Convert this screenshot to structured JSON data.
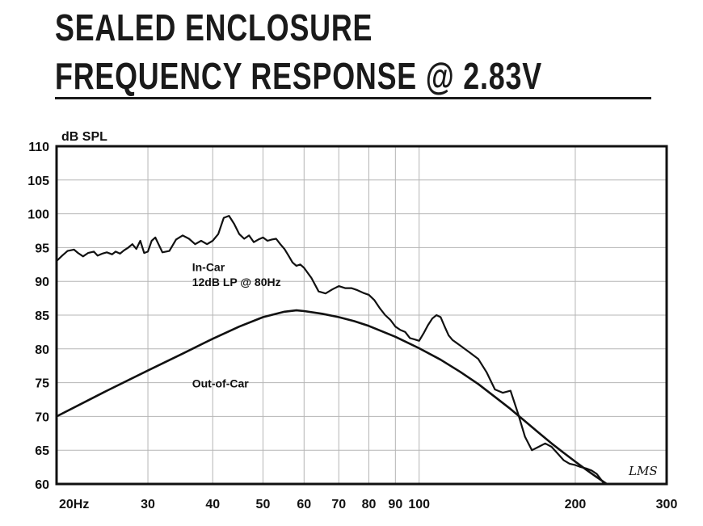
{
  "header": {
    "title_line1": "SEALED ENCLOSURE",
    "title_line2": "FREQUENCY RESPONSE @ 2.83V"
  },
  "chart_data": {
    "type": "line",
    "ylabel": "dB SPL",
    "x_scale": "log",
    "xlim": [
      20,
      300
    ],
    "ylim": [
      60,
      110
    ],
    "x_ticks": [
      {
        "value": 20,
        "label": "20Hz"
      },
      {
        "value": 30,
        "label": "30"
      },
      {
        "value": 40,
        "label": "40"
      },
      {
        "value": 50,
        "label": "50"
      },
      {
        "value": 60,
        "label": "60"
      },
      {
        "value": 70,
        "label": "70"
      },
      {
        "value": 80,
        "label": "80"
      },
      {
        "value": 90,
        "label": "90"
      },
      {
        "value": 100,
        "label": "100"
      },
      {
        "value": 200,
        "label": "200"
      },
      {
        "value": 300,
        "label": "300"
      }
    ],
    "y_ticks": [
      60,
      65,
      70,
      75,
      80,
      85,
      90,
      95,
      100,
      105,
      110
    ],
    "grid": true,
    "series": [
      {
        "name": "In-Car",
        "x": [
          20,
          20.5,
          21,
          21.6,
          22,
          22.5,
          23,
          23.6,
          24,
          24.5,
          25,
          25.6,
          26,
          26.5,
          27,
          27.5,
          28,
          28.5,
          29,
          29.5,
          30,
          30.5,
          31,
          32,
          33,
          34,
          35,
          36,
          37,
          38,
          39,
          40,
          41,
          42,
          43,
          44,
          45,
          46,
          47,
          48,
          49,
          50,
          51,
          52,
          53,
          54,
          55,
          56,
          57,
          58,
          59,
          60,
          62,
          64,
          66,
          68,
          70,
          72,
          74,
          76,
          78,
          80,
          82,
          84,
          86,
          88,
          90,
          92,
          94,
          96,
          98,
          100,
          102,
          104,
          106,
          108,
          110,
          112,
          114,
          116,
          118,
          120,
          125,
          130,
          135,
          140,
          145,
          150,
          155,
          160,
          165,
          170,
          175,
          180,
          185,
          190,
          195,
          200,
          205,
          210,
          215,
          220,
          225,
          230
        ],
        "y": [
          93,
          93.8,
          94.5,
          94.7,
          94.2,
          93.7,
          94.2,
          94.4,
          93.8,
          94.1,
          94.3,
          94.0,
          94.4,
          94.1,
          94.6,
          95.0,
          95.5,
          94.8,
          96.0,
          94.2,
          94.4,
          96.0,
          96.5,
          94.3,
          94.5,
          96.2,
          96.8,
          96.3,
          95.5,
          96.0,
          95.5,
          96.0,
          97.0,
          99.4,
          99.7,
          98.5,
          97.0,
          96.3,
          96.8,
          95.8,
          96.2,
          96.5,
          96.0,
          96.2,
          96.3,
          95.5,
          94.8,
          93.8,
          92.8,
          92.3,
          92.5,
          92.0,
          90.5,
          88.5,
          88.2,
          88.8,
          89.3,
          89.0,
          89.0,
          88.7,
          88.3,
          88.0,
          87.2,
          86.0,
          85.0,
          84.3,
          83.3,
          82.8,
          82.5,
          81.6,
          81.4,
          81.2,
          82.3,
          83.5,
          84.5,
          85.0,
          84.7,
          83.3,
          82.0,
          81.3,
          80.9,
          80.5,
          79.5,
          78.5,
          76.5,
          74.0,
          73.5,
          73.8,
          70.5,
          67.0,
          65.0,
          65.5,
          66.0,
          65.5,
          64.5,
          63.5,
          63.0,
          62.8,
          62.5,
          62.3,
          62.0,
          61.5,
          60.5,
          59.5
        ]
      },
      {
        "name": "Out-of-Car",
        "x": [
          20,
          25,
          30,
          35,
          40,
          45,
          50,
          55,
          58,
          60,
          65,
          70,
          75,
          80,
          90,
          100,
          110,
          120,
          130,
          140,
          150,
          160,
          170,
          180,
          190,
          200,
          210,
          220,
          230,
          240
        ],
        "y": [
          70,
          73.8,
          76.8,
          79.3,
          81.5,
          83.3,
          84.7,
          85.5,
          85.7,
          85.6,
          85.2,
          84.7,
          84.1,
          83.4,
          81.8,
          80.1,
          78.4,
          76.6,
          74.8,
          72.9,
          71.1,
          69.3,
          67.6,
          66.0,
          64.6,
          63.3,
          62.1,
          61.0,
          60.0,
          59.0
        ]
      }
    ],
    "annotations": [
      {
        "text": "In-Car",
        "x": 36.5,
        "y": 91.5
      },
      {
        "text": "12dB LP @ 80Hz",
        "x": 36.5,
        "y": 89.3
      },
      {
        "text": "Out-of-Car",
        "x": 36.5,
        "y": 74.3
      }
    ],
    "signature": "LMS"
  }
}
